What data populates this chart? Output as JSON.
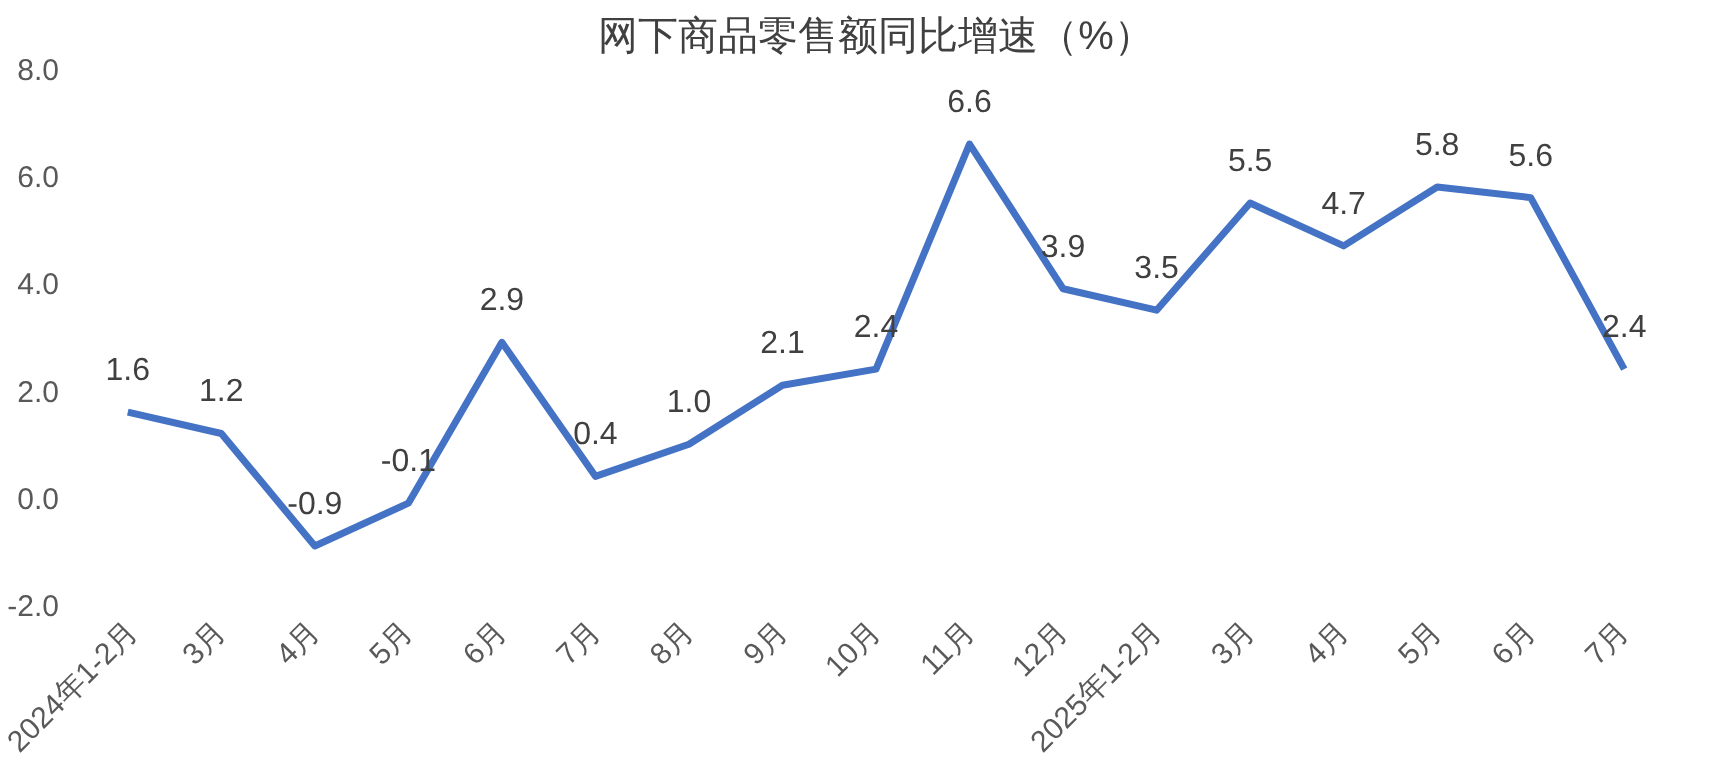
{
  "chart_data": {
    "type": "line",
    "title": "网下商品零售额同比增速（%）",
    "categories": [
      "2024年1-2月",
      "3月",
      "4月",
      "5月",
      "6月",
      "7月",
      "8月",
      "9月",
      "10月",
      "11月",
      "12月",
      "2025年1-2月",
      "3月",
      "4月",
      "5月",
      "6月",
      "7月"
    ],
    "series": [
      {
        "color": "#4472c4",
        "values": [
          1.6,
          1.2,
          -0.9,
          -0.1,
          2.9,
          0.4,
          1.0,
          2.1,
          2.4,
          6.6,
          3.9,
          3.5,
          5.5,
          4.7,
          5.8,
          5.6,
          2.4
        ],
        "value_labels": [
          "1.6",
          "1.2",
          "-0.9",
          "-0.1",
          "2.9",
          "0.4",
          "1.0",
          "2.1",
          "2.4",
          "6.6",
          "3.9",
          "3.5",
          "5.5",
          "4.7",
          "5.8",
          "5.6",
          "2.4"
        ]
      }
    ],
    "ylim": [
      -2,
      8
    ],
    "yticks": [
      {
        "value": -2,
        "label": "-2.0"
      },
      {
        "value": 0,
        "label": "0.0"
      },
      {
        "value": 2,
        "label": "2.0"
      },
      {
        "value": 4,
        "label": "4.0"
      },
      {
        "value": 6,
        "label": "6.0"
      },
      {
        "value": 8,
        "label": "8.0"
      }
    ],
    "grid": false,
    "marker": "none",
    "line_style": "solid"
  }
}
